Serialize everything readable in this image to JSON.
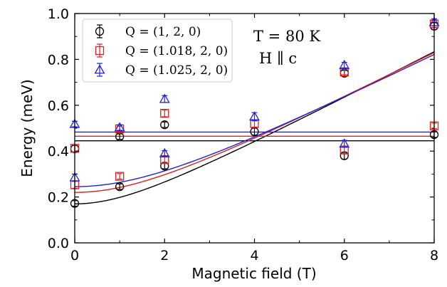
{
  "chart_data": {
    "type": "scatter",
    "xlabel": "Magnetic field (T)",
    "ylabel": "Energy (meV)",
    "xlim": [
      0,
      8
    ],
    "ylim": [
      0.0,
      1.0
    ],
    "xticks": [
      0,
      2,
      4,
      6,
      8
    ],
    "xtick_labels": [
      "0",
      "2",
      "4",
      "6",
      "8"
    ],
    "xminor": [
      1,
      3,
      5,
      7
    ],
    "yticks": [
      0.0,
      0.2,
      0.4,
      0.6,
      0.8,
      1.0
    ],
    "ytick_labels": [
      "0.0",
      "0.2",
      "0.4",
      "0.6",
      "0.8",
      "1.0"
    ],
    "yminor": [
      0.1,
      0.3,
      0.5,
      0.7,
      0.9
    ],
    "annotations": [
      "T = 80 K",
      "H ∥ c"
    ],
    "legend_position": "top-left",
    "series": [
      {
        "name": "Q = (1, 2, 0)",
        "marker": "circle",
        "color": "#000000",
        "points": [
          {
            "x": 0,
            "y": 0.172,
            "err": 0.012
          },
          {
            "x": 0,
            "y": 0.41,
            "err": 0.015
          },
          {
            "x": 1,
            "y": 0.245,
            "err": 0.012
          },
          {
            "x": 1,
            "y": 0.463,
            "err": 0.012
          },
          {
            "x": 2,
            "y": 0.335,
            "err": 0.012
          },
          {
            "x": 2,
            "y": 0.515,
            "err": 0.012
          },
          {
            "x": 4,
            "y": 0.485,
            "err": 0.015
          },
          {
            "x": 6,
            "y": 0.38,
            "err": 0.015
          },
          {
            "x": 6,
            "y": 0.74,
            "err": 0.012
          },
          {
            "x": 8,
            "y": 0.472,
            "err": 0.012
          },
          {
            "x": 8,
            "y": 0.945,
            "err": 0.015
          }
        ],
        "fit": {
          "gap": 0.17,
          "slope": 0.102,
          "flat": 0.445
        }
      },
      {
        "name": "Q = (1.018, 2, 0)",
        "marker": "square",
        "color": "#e02020",
        "points": [
          {
            "x": 0,
            "y": 0.253,
            "err": 0.015
          },
          {
            "x": 0,
            "y": 0.412,
            "err": 0.015
          },
          {
            "x": 1,
            "y": 0.29,
            "err": 0.012
          },
          {
            "x": 1,
            "y": 0.497,
            "err": 0.012
          },
          {
            "x": 2,
            "y": 0.363,
            "err": 0.012
          },
          {
            "x": 2,
            "y": 0.565,
            "err": 0.015
          },
          {
            "x": 4,
            "y": 0.52,
            "err": 0.015
          },
          {
            "x": 6,
            "y": 0.405,
            "err": 0.015
          },
          {
            "x": 6,
            "y": 0.745,
            "err": 0.012
          },
          {
            "x": 8,
            "y": 0.51,
            "err": 0.012
          },
          {
            "x": 8,
            "y": 0.955,
            "err": 0.015
          }
        ],
        "fit": {
          "gap": 0.22,
          "slope": 0.1,
          "flat": 0.465
        }
      },
      {
        "name": "Q = (1.025, 2, 0)",
        "marker": "triangle",
        "color": "#2020e0",
        "points": [
          {
            "x": 0,
            "y": 0.285,
            "err": 0.015
          },
          {
            "x": 0,
            "y": 0.518,
            "err": 0.012
          },
          {
            "x": 1,
            "y": 0.503,
            "err": 0.012
          },
          {
            "x": 2,
            "y": 0.39,
            "err": 0.012
          },
          {
            "x": 2,
            "y": 0.627,
            "err": 0.015
          },
          {
            "x": 4,
            "y": 0.55,
            "err": 0.018
          },
          {
            "x": 6,
            "y": 0.432,
            "err": 0.015
          },
          {
            "x": 6,
            "y": 0.775,
            "err": 0.012
          },
          {
            "x": 8,
            "y": 0.962,
            "err": 0.015
          }
        ],
        "fit": {
          "gap": 0.245,
          "slope": 0.098,
          "flat": 0.483
        }
      }
    ]
  }
}
